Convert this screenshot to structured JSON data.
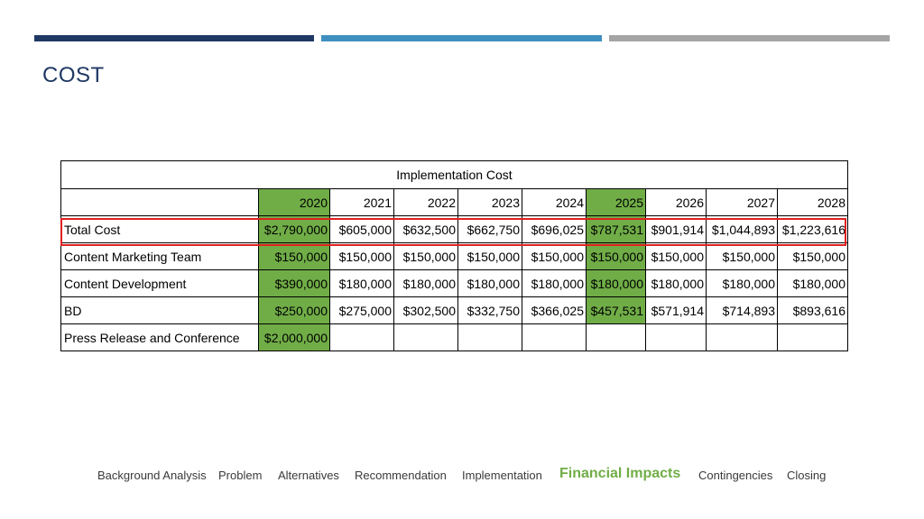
{
  "colors": {
    "bar1": "#1f3864",
    "bar2": "#3f8fc0",
    "bar3": "#a5a5a5",
    "title": "#1f3864",
    "highlight_fill": "#70ad47",
    "active_nav": "#70ad47",
    "selection_outline": "#e02020"
  },
  "slide": {
    "title": "COST"
  },
  "table": {
    "caption": "Implementation Cost",
    "years": [
      "2020",
      "2021",
      "2022",
      "2023",
      "2024",
      "2025",
      "2026",
      "2027",
      "2028"
    ],
    "highlighted_years": [
      "2020",
      "2025"
    ],
    "rows": [
      {
        "label": "Total Cost",
        "values": [
          "$2,790,000",
          "$605,000",
          "$632,500",
          "$662,750",
          "$696,025",
          "$787,531",
          "$901,914",
          "$1,044,893",
          "$1,223,616"
        ]
      },
      {
        "label": "Content Marketing Team",
        "values": [
          "$150,000",
          "$150,000",
          "$150,000",
          "$150,000",
          "$150,000",
          "$150,000",
          "$150,000",
          "$150,000",
          "$150,000"
        ]
      },
      {
        "label": "Content Development",
        "values": [
          "$390,000",
          "$180,000",
          "$180,000",
          "$180,000",
          "$180,000",
          "$180,000",
          "$180,000",
          "$180,000",
          "$180,000"
        ]
      },
      {
        "label": "BD",
        "values": [
          "$250,000",
          "$275,000",
          "$302,500",
          "$332,750",
          "$366,025",
          "$457,531",
          "$571,914",
          "$714,893",
          "$893,616"
        ]
      },
      {
        "label": "Press Release and Conference",
        "values": [
          "$2,000,000",
          "",
          "",
          "",
          "",
          "",
          "",
          "",
          ""
        ]
      }
    ]
  },
  "nav": {
    "items": [
      {
        "label": "Background Analysis",
        "active": false
      },
      {
        "label": "Problem",
        "active": false
      },
      {
        "label": "Alternatives",
        "active": false
      },
      {
        "label": "Recommendation",
        "active": false
      },
      {
        "label": "Implementation",
        "active": false
      },
      {
        "label": "Financial Impacts",
        "active": true
      },
      {
        "label": "Contingencies",
        "active": false
      },
      {
        "label": "Closing",
        "active": false
      }
    ]
  }
}
